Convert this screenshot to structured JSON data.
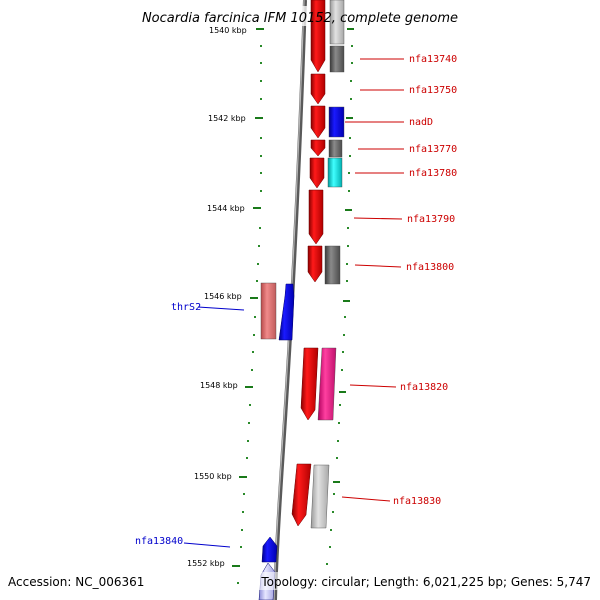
{
  "title": "Nocardia farcinica IFM 10152, complete genome",
  "accession": "Accession: NC_006361",
  "topology": "Topology: circular; Length: 6,021,225 bp; Genes: 5,747",
  "ticks": [
    "1540 kbp",
    "1542 kbp",
    "1544 kbp",
    "1546 kbp",
    "1548 kbp",
    "1550 kbp",
    "1552 kbp"
  ],
  "genes": [
    {
      "label": "nfa13740",
      "color": "#cc0000"
    },
    {
      "label": "nfa13750",
      "color": "#cc0000"
    },
    {
      "label": "nadD",
      "color": "#cc0000"
    },
    {
      "label": "nfa13770",
      "color": "#cc0000"
    },
    {
      "label": "nfa13780",
      "color": "#cc0000"
    },
    {
      "label": "nfa13790",
      "color": "#cc0000"
    },
    {
      "label": "nfa13800",
      "color": "#cc0000"
    },
    {
      "label": "thrS2",
      "color": "#0000cc"
    },
    {
      "label": "nfa13820",
      "color": "#cc0000"
    },
    {
      "label": "nfa13830",
      "color": "#cc0000"
    },
    {
      "label": "nfa13840",
      "color": "#0000cc"
    }
  ]
}
